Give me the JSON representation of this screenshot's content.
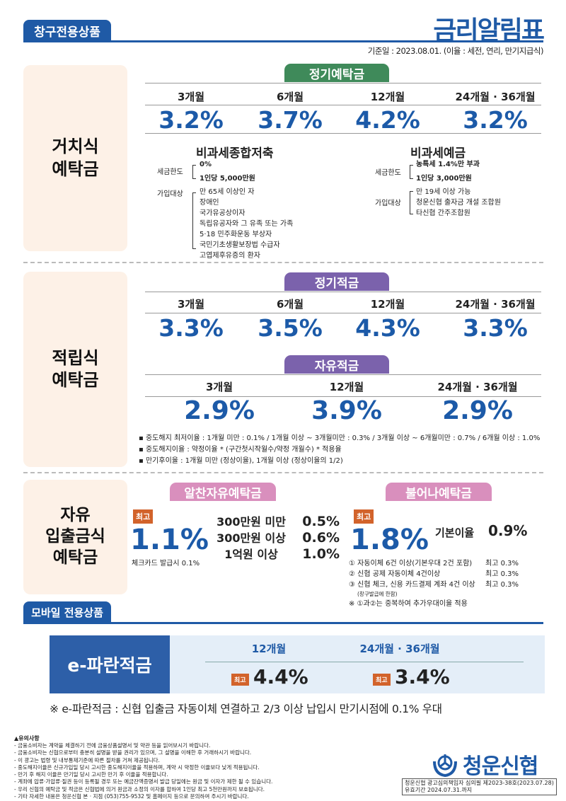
{
  "header": {
    "tab": "창구전용상품",
    "title": "금리알림표",
    "base_date": "기준일 : 2023.08.01. (이율 : 세전, 연리, 만기지급식)"
  },
  "colors": {
    "brand_blue": "#1f5aa6",
    "green": "#3f8a5a",
    "purple": "#7b62ac",
    "pink": "#d98fbd",
    "badge": "#d2632b"
  },
  "section1": {
    "label": "거치식\n예탁금",
    "product": "정기예탁금",
    "terms": [
      "3개월",
      "6개월",
      "12개월",
      "24개월 · 36개월"
    ],
    "rates": [
      "3.2%",
      "3.7%",
      "4.2%",
      "3.2%"
    ],
    "sub": [
      {
        "title": "비과세종합저축",
        "tax_label": "세금한도",
        "tax": [
          "0%",
          "1인당 5,000만원"
        ],
        "elig_label": "가입대상",
        "elig": [
          "만 65세 이상인 자",
          "장애인",
          "국가유공상이자",
          "독립유공자와 그 유족 또는 가족",
          "5·18 민주화운동 부상자",
          "국민기초생활보장법 수급자",
          "고엽제후유증의 환자"
        ]
      },
      {
        "title": "비과세예금",
        "tax_label": "세금한도",
        "tax": [
          "농특세 1.4%만 부과",
          "1인당 3,000만원"
        ],
        "elig_label": "가입대상",
        "elig": [
          "만 19세 이상 가능",
          "청운신협 출자금 개설 조합원",
          "타신협 간주조합원"
        ]
      }
    ]
  },
  "section2": {
    "label": "적립식\n예탁금",
    "regular": {
      "name": "정기적금",
      "terms": [
        "3개월",
        "6개월",
        "12개월",
        "24개월 · 36개월"
      ],
      "rates": [
        "3.3%",
        "3.5%",
        "4.3%",
        "3.3%"
      ]
    },
    "free": {
      "name": "자유적금",
      "terms": [
        "3개월",
        "12개월",
        "24개월 · 36개월"
      ],
      "rates": [
        "2.9%",
        "3.9%",
        "2.9%"
      ]
    },
    "bullets": [
      "중도해지 최저이율 : 1개월 미만 : 0.1% / 1개월 이상 ~ 3개월미만 : 0.3% / 3개월 이상 ~ 6개월미만 : 0.7% / 6개월 이상 : 1.0%",
      "중도해지이율 :   약정이율 * (구간첫시작월수/약정 개월수) * 적용율",
      "만기후이율 :  1개월 미만 (정상이율), 1개월 이상 (정상이율의 1/2)"
    ]
  },
  "section3": {
    "label": "자유\n입출금식\n예탁금",
    "p1": {
      "name": "알찬자유예탁금",
      "badge": "최고",
      "max": "1.1%",
      "note": "체크카드 발급시 0.1%",
      "tiers": [
        {
          "range": "300만원 미만",
          "rate": "0.5%"
        },
        {
          "range": "300만원 이상",
          "rate": "0.6%"
        },
        {
          "range": "1억원 이상",
          "rate": "1.0%"
        }
      ]
    },
    "p2": {
      "name": "불어나예탁금",
      "badge": "최고",
      "max": "1.8%",
      "base_label": "기본이율",
      "base": "0.9%",
      "conds": [
        {
          "text": "① 자동이체 6건 이상(기본우대 2건 포함)",
          "bonus": "최고 0.3%"
        },
        {
          "text": "② 신협 공제 자동이체 4건이상",
          "bonus": "최고 0.3%"
        },
        {
          "text": "③ 신협 체크, 신용 카드결제 계좌 4건 이상",
          "bonus": "최고 0.3%"
        }
      ],
      "cond_note": "(창구발급에 한함)",
      "dup_note": "※ ①과②는 중복하여 추가우대이율 적용"
    }
  },
  "mobile": {
    "tab": "모바일 전용상품",
    "product": "e-파란적금",
    "terms": [
      "12개월",
      "24개월 · 36개월"
    ],
    "badge": "최고",
    "rates": [
      "4.4%",
      "3.4%"
    ],
    "note": "※ e-파란적금 : 신협 입출금 자동이체 연결하고 2/3 이상 납입시 만기시점에 0.1% 우대"
  },
  "footer": {
    "title": "▲유의사항",
    "notes": [
      "- 금융소비자는 계약을 체결하기 전에 금융상품설명서 및 약관 등을 읽어보시기 바랍니다.",
      "- 금융소비자는 신협으로부터 충분히 설명을 받을 권리가 있으며, 그 설명을 이해한 후 거래하시기 바랍니다.",
      "- 이 광고는 법령 및 내부통제기준에 따른 절차를 거쳐 제공됩니다.",
      "- 중도해지이율은 신규가입일 당시 고시한 중도해지이율을 적용하며, 계약 시 약정한 이율보다 낮게 적용됩니다.",
      "- 만기 후 해지 이율은 만기일 당시 고시한 만기  후 이율을 적용합니다.",
      "- 계좌에 압류·가압류·질권 등이 등록될 경우 또는 예금잔액증명서 발급 당일에는 원금 및 이자가 제한 될 수 있습니다.",
      "- 우리 신협의  예탁금 및 적금은 신협법에 의거 원금과 소정의 이자를 합하여 1인당 최고 5천만원까지 보호됩니다.",
      "- 기타 자세한 내용은 청운신협 본 · 지점 (053)755-9532 및 홈페이지 등으로 문의하여 주시기 바랍니다."
    ],
    "logo_text": "청운신협",
    "review": "청운신협 광고심의책임자 심의필 제2023-38호(2023.07.28)",
    "valid": "유효기간 2024.07.31.까지"
  }
}
